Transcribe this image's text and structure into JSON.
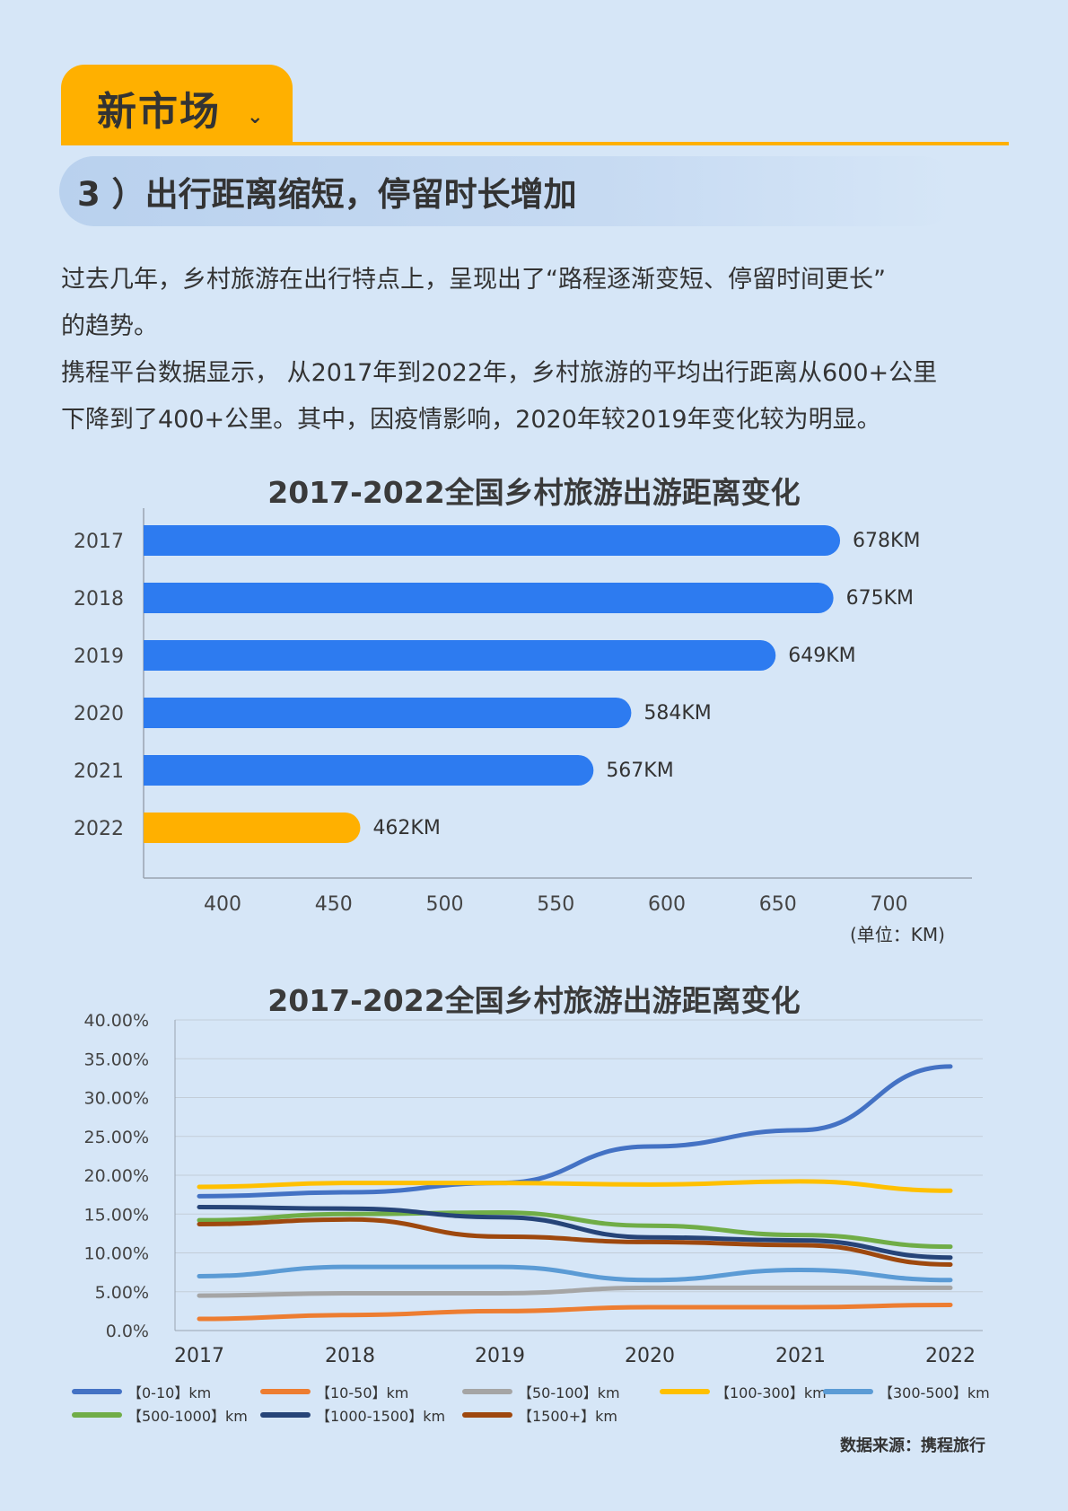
{
  "header": {
    "title": "新市场",
    "chevron": "⌄"
  },
  "subheading": "3 ）出行距离缩短，停留时长增加",
  "paragraphs": [
    "过去几年，乡村旅游在出行特点上，呈现出了“路程逐渐变短、停留时间更长”",
    "的趋势。",
    "携程平台数据显示， 从2017年到2022年，乡村旅游的平均出行距离从600+公里",
    "下降到了400+公里。其中，因疫情影响，2020年较2019年变化较为明显。"
  ],
  "colors": {
    "page_bg": "#d6e6f7",
    "accent": "#ffb000",
    "bar_blue": "#2d7bf0",
    "bar_highlight": "#ffb000"
  },
  "source": "数据来源：携程旅行",
  "chart_data": [
    {
      "type": "bar",
      "orientation": "horizontal",
      "title": "2017-2022全国乡村旅游出游距离变化",
      "categories": [
        "2017",
        "2018",
        "2019",
        "2020",
        "2021",
        "2022"
      ],
      "values": [
        678,
        675,
        649,
        584,
        567,
        462
      ],
      "data_labels": [
        "678KM",
        "675KM",
        "649KM",
        "584KM",
        "567KM",
        "462KM"
      ],
      "highlight_category": "2022",
      "xlim": [
        365,
        735
      ],
      "xticks": [
        400,
        450,
        500,
        550,
        600,
        650,
        700
      ],
      "unit_label": "(单位：KM)",
      "grid": false
    },
    {
      "type": "line",
      "title": "2017-2022全国乡村旅游出游距离变化",
      "x": [
        "2017",
        "2018",
        "2019",
        "2020",
        "2021",
        "2022"
      ],
      "ylim": [
        0,
        40
      ],
      "yticks": [
        "0.0%",
        "5.00%",
        "10.00%",
        "15.00%",
        "20.00%",
        "25.00%",
        "30.00%",
        "35.00%",
        "40.00%"
      ],
      "grid": true,
      "legend_position": "bottom",
      "series": [
        {
          "name": "【0-10】km",
          "color": "#4472c4",
          "values": [
            17.3,
            17.8,
            19.0,
            23.7,
            25.8,
            34.0
          ]
        },
        {
          "name": "【10-50】km",
          "color": "#ed7d31",
          "values": [
            1.5,
            2.0,
            2.5,
            3.0,
            3.0,
            3.3
          ]
        },
        {
          "name": "【50-100】km",
          "color": "#a5a5a5",
          "values": [
            4.5,
            4.8,
            4.8,
            5.5,
            5.5,
            5.5
          ]
        },
        {
          "name": "【100-300】km",
          "color": "#ffc000",
          "values": [
            18.5,
            19.0,
            19.0,
            18.8,
            19.2,
            18.0
          ]
        },
        {
          "name": "【300-500】km",
          "color": "#5b9bd5",
          "values": [
            7.0,
            8.2,
            8.2,
            6.5,
            7.8,
            6.5
          ]
        },
        {
          "name": "【500-1000】km",
          "color": "#70ad47",
          "values": [
            14.2,
            15.0,
            15.2,
            13.5,
            12.3,
            10.8
          ]
        },
        {
          "name": "【1000-1500】km",
          "color": "#264478",
          "values": [
            15.9,
            15.7,
            14.6,
            12.0,
            11.6,
            9.4
          ]
        },
        {
          "name": "【1500+】km",
          "color": "#9e480e",
          "values": [
            13.7,
            14.3,
            12.1,
            11.4,
            11.0,
            8.5
          ]
        }
      ]
    }
  ]
}
